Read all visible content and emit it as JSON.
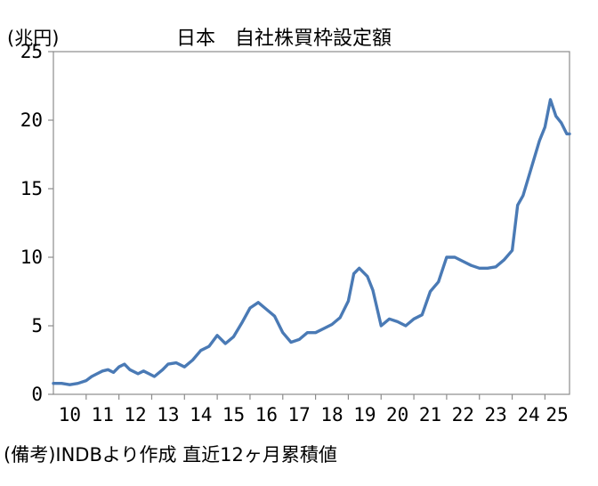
{
  "chart_data": {
    "type": "line",
    "title": "日本　自社株買枠設定額",
    "unit_label": "(兆円)",
    "note": "(備考)INDBより作成 直近12ヶ月累積値",
    "x_ticks": [
      "10",
      "11",
      "12",
      "13",
      "14",
      "15",
      "16",
      "17",
      "18",
      "19",
      "20",
      "21",
      "22",
      "23",
      "24",
      "25"
    ],
    "y_ticks": [
      "0",
      "5",
      "10",
      "15",
      "20",
      "25"
    ],
    "xlim": [
      "2010-01",
      "2025-10"
    ],
    "ylim": [
      0,
      25
    ],
    "grid": false,
    "legend": "none",
    "line_color": "#4a7ab5",
    "series": [
      {
        "points": [
          [
            "2010-01",
            0.8
          ],
          [
            "2010-04",
            0.8
          ],
          [
            "2010-07",
            0.7
          ],
          [
            "2010-10",
            0.8
          ],
          [
            "2011-01",
            1.0
          ],
          [
            "2011-03",
            1.3
          ],
          [
            "2011-05",
            1.5
          ],
          [
            "2011-07",
            1.7
          ],
          [
            "2011-09",
            1.8
          ],
          [
            "2011-11",
            1.6
          ],
          [
            "2012-01",
            2.0
          ],
          [
            "2012-03",
            2.2
          ],
          [
            "2012-05",
            1.8
          ],
          [
            "2012-08",
            1.5
          ],
          [
            "2012-10",
            1.7
          ],
          [
            "2012-12",
            1.5
          ],
          [
            "2013-02",
            1.3
          ],
          [
            "2013-05",
            1.8
          ],
          [
            "2013-07",
            2.2
          ],
          [
            "2013-10",
            2.3
          ],
          [
            "2014-01",
            2.0
          ],
          [
            "2014-04",
            2.5
          ],
          [
            "2014-07",
            3.2
          ],
          [
            "2014-10",
            3.5
          ],
          [
            "2015-01",
            4.3
          ],
          [
            "2015-04",
            3.7
          ],
          [
            "2015-07",
            4.2
          ],
          [
            "2015-10",
            5.2
          ],
          [
            "2016-01",
            6.3
          ],
          [
            "2016-04",
            6.7
          ],
          [
            "2016-07",
            6.2
          ],
          [
            "2016-10",
            5.7
          ],
          [
            "2017-01",
            4.5
          ],
          [
            "2017-04",
            3.8
          ],
          [
            "2017-07",
            4.0
          ],
          [
            "2017-10",
            4.5
          ],
          [
            "2018-01",
            4.5
          ],
          [
            "2018-04",
            4.8
          ],
          [
            "2018-07",
            5.1
          ],
          [
            "2018-10",
            5.6
          ],
          [
            "2019-01",
            6.8
          ],
          [
            "2019-03",
            8.8
          ],
          [
            "2019-05",
            9.2
          ],
          [
            "2019-08",
            8.6
          ],
          [
            "2019-10",
            7.6
          ],
          [
            "2020-01",
            5.0
          ],
          [
            "2020-04",
            5.5
          ],
          [
            "2020-07",
            5.3
          ],
          [
            "2020-10",
            5.0
          ],
          [
            "2021-01",
            5.5
          ],
          [
            "2021-04",
            5.8
          ],
          [
            "2021-07",
            7.5
          ],
          [
            "2021-10",
            8.2
          ],
          [
            "2022-01",
            10.0
          ],
          [
            "2022-04",
            10.0
          ],
          [
            "2022-07",
            9.7
          ],
          [
            "2022-10",
            9.4
          ],
          [
            "2023-01",
            9.2
          ],
          [
            "2023-04",
            9.2
          ],
          [
            "2023-07",
            9.3
          ],
          [
            "2023-10",
            9.8
          ],
          [
            "2024-01",
            10.5
          ],
          [
            "2024-03",
            13.8
          ],
          [
            "2024-05",
            14.5
          ],
          [
            "2024-08",
            16.5
          ],
          [
            "2024-11",
            18.5
          ],
          [
            "2025-01",
            19.5
          ],
          [
            "2025-03",
            21.5
          ],
          [
            "2025-05",
            20.3
          ],
          [
            "2025-07",
            19.8
          ],
          [
            "2025-09",
            19.0
          ],
          [
            "2025-10",
            19.0
          ]
        ]
      }
    ]
  }
}
